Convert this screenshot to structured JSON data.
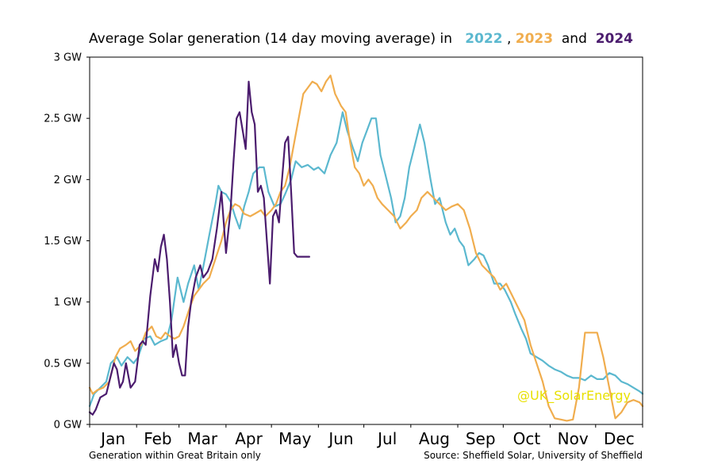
{
  "chart_data": {
    "type": "line",
    "title": {
      "prefix": "Average Solar generation (14 day moving average) in",
      "sep1": ",",
      "sep2": "and",
      "years": [
        "2022",
        "2023",
        "2024"
      ]
    },
    "ylim": [
      0,
      3
    ],
    "y_ticks": [
      0,
      0.5,
      1,
      1.5,
      2,
      2.5,
      3
    ],
    "y_tick_labels": [
      "0 GW",
      "0.5 GW",
      "1 GW",
      "1.5 GW",
      "2 GW",
      "2.5 GW",
      "3 GW"
    ],
    "xlim": [
      1,
      366
    ],
    "month_labels": [
      "Jan",
      "Feb",
      "Mar",
      "Apr",
      "May",
      "Jun",
      "Jul",
      "Aug",
      "Sep",
      "Oct",
      "Nov",
      "Dec"
    ],
    "month_starts": [
      1,
      32,
      60,
      91,
      121,
      152,
      182,
      213,
      244,
      274,
      305,
      335,
      366
    ],
    "grid": false,
    "series": [
      {
        "name": "2022",
        "color": "#5bb8cf",
        "x": [
          1,
          4,
          8,
          12,
          15,
          19,
          22,
          26,
          30,
          33,
          37,
          41,
          44,
          48,
          52,
          55,
          59,
          63,
          66,
          70,
          73,
          77,
          80,
          84,
          86,
          88,
          91,
          94,
          97,
          100,
          103,
          106,
          109,
          113,
          116,
          119,
          123,
          127,
          130,
          134,
          137,
          141,
          145,
          149,
          152,
          156,
          160,
          164,
          168,
          171,
          175,
          178,
          181,
          184,
          187,
          190,
          193,
          196,
          200,
          203,
          206,
          209,
          212,
          215,
          219,
          222,
          226,
          229,
          232,
          236,
          239,
          242,
          245,
          248,
          251,
          255,
          258,
          261,
          264,
          268,
          272,
          275,
          279,
          282,
          286,
          289,
          292,
          296,
          300,
          304,
          308,
          312,
          316,
          320,
          324,
          328,
          332,
          336,
          340,
          344,
          348,
          352,
          356,
          360,
          364,
          366
        ],
        "y": [
          0.15,
          0.25,
          0.3,
          0.35,
          0.5,
          0.55,
          0.48,
          0.55,
          0.5,
          0.55,
          0.7,
          0.72,
          0.65,
          0.68,
          0.7,
          0.85,
          1.2,
          1.0,
          1.15,
          1.3,
          1.1,
          1.35,
          1.55,
          1.8,
          1.95,
          1.9,
          1.88,
          1.82,
          1.7,
          1.6,
          1.78,
          1.9,
          2.05,
          2.1,
          2.1,
          1.9,
          1.78,
          1.8,
          1.88,
          2.0,
          2.15,
          2.1,
          2.12,
          2.08,
          2.1,
          2.05,
          2.2,
          2.3,
          2.55,
          2.4,
          2.25,
          2.15,
          2.3,
          2.4,
          2.5,
          2.5,
          2.2,
          2.05,
          1.85,
          1.65,
          1.7,
          1.85,
          2.1,
          2.25,
          2.45,
          2.3,
          2.0,
          1.8,
          1.85,
          1.65,
          1.55,
          1.6,
          1.5,
          1.45,
          1.3,
          1.35,
          1.4,
          1.38,
          1.3,
          1.15,
          1.15,
          1.1,
          1.0,
          0.9,
          0.78,
          0.7,
          0.58,
          0.55,
          0.52,
          0.48,
          0.45,
          0.43,
          0.4,
          0.38,
          0.38,
          0.36,
          0.4,
          0.37,
          0.37,
          0.42,
          0.4,
          0.35,
          0.33,
          0.3,
          0.27,
          0.25
        ]
      },
      {
        "name": "2023",
        "color": "#f0ad4e",
        "x": [
          1,
          3,
          6,
          10,
          14,
          18,
          21,
          25,
          28,
          31,
          35,
          38,
          42,
          45,
          48,
          51,
          54,
          57,
          60,
          63,
          67,
          70,
          73,
          76,
          80,
          84,
          88,
          91,
          94,
          97,
          100,
          103,
          107,
          110,
          114,
          117,
          121,
          124,
          127,
          130,
          133,
          136,
          139,
          142,
          145,
          148,
          151,
          154,
          157,
          160,
          163,
          167,
          170,
          173,
          176,
          179,
          182,
          185,
          188,
          191,
          194,
          198,
          202,
          206,
          210,
          213,
          217,
          220,
          224,
          228,
          232,
          236,
          240,
          244,
          248,
          252,
          256,
          260,
          264,
          268,
          272,
          276,
          280,
          284,
          288,
          292,
          296,
          300,
          304,
          308,
          312,
          316,
          320,
          324,
          328,
          332,
          336,
          340,
          344,
          348,
          352,
          356,
          360,
          364,
          366
        ],
        "y": [
          0.3,
          0.25,
          0.28,
          0.3,
          0.35,
          0.55,
          0.62,
          0.65,
          0.68,
          0.6,
          0.65,
          0.75,
          0.8,
          0.72,
          0.7,
          0.75,
          0.72,
          0.7,
          0.72,
          0.8,
          0.95,
          1.05,
          1.1,
          1.15,
          1.2,
          1.35,
          1.5,
          1.65,
          1.75,
          1.8,
          1.78,
          1.72,
          1.7,
          1.72,
          1.75,
          1.7,
          1.75,
          1.8,
          1.9,
          1.95,
          2.1,
          2.3,
          2.5,
          2.7,
          2.75,
          2.8,
          2.78,
          2.72,
          2.8,
          2.85,
          2.7,
          2.6,
          2.55,
          2.3,
          2.1,
          2.05,
          1.95,
          2.0,
          1.95,
          1.85,
          1.8,
          1.75,
          1.7,
          1.6,
          1.65,
          1.7,
          1.75,
          1.85,
          1.9,
          1.85,
          1.8,
          1.75,
          1.78,
          1.8,
          1.75,
          1.6,
          1.4,
          1.3,
          1.25,
          1.2,
          1.1,
          1.15,
          1.05,
          0.95,
          0.85,
          0.65,
          0.5,
          0.35,
          0.15,
          0.05,
          0.04,
          0.03,
          0.04,
          0.3,
          0.75,
          0.75,
          0.75,
          0.55,
          0.3,
          0.05,
          0.1,
          0.18,
          0.2,
          0.18,
          0.15
        ]
      },
      {
        "name": "2024",
        "color": "#4b1c6e",
        "x": [
          1,
          3,
          5,
          8,
          12,
          15,
          17,
          19,
          21,
          23,
          25,
          28,
          31,
          34,
          36,
          38,
          41,
          44,
          46,
          48,
          50,
          52,
          54,
          56,
          58,
          60,
          62,
          64,
          66,
          68,
          71,
          74,
          76,
          79,
          82,
          85,
          88,
          91,
          94,
          96,
          98,
          100,
          102,
          104,
          106,
          108,
          110,
          112,
          114,
          116,
          118,
          120,
          122,
          124,
          126,
          128,
          130,
          132,
          134,
          136,
          138,
          140,
          142,
          144,
          146
        ],
        "y": [
          0.1,
          0.08,
          0.12,
          0.22,
          0.25,
          0.4,
          0.5,
          0.45,
          0.3,
          0.35,
          0.5,
          0.3,
          0.35,
          0.65,
          0.68,
          0.65,
          1.05,
          1.35,
          1.25,
          1.45,
          1.55,
          1.35,
          1.0,
          0.55,
          0.65,
          0.5,
          0.4,
          0.4,
          0.8,
          1.0,
          1.2,
          1.3,
          1.2,
          1.25,
          1.35,
          1.6,
          1.9,
          1.4,
          1.75,
          2.15,
          2.5,
          2.55,
          2.4,
          2.25,
          2.8,
          2.55,
          2.45,
          1.9,
          1.95,
          1.85,
          1.5,
          1.15,
          1.7,
          1.75,
          1.65,
          2.0,
          2.3,
          2.35,
          1.9,
          1.4,
          1.37,
          1.37,
          1.37,
          1.37,
          1.37
        ]
      }
    ]
  },
  "footnote_left": "Generation within Great Britain only",
  "footnote_right": "Source: Sheffield Solar, University of Sheffield",
  "watermark": "@UK_SolarEnergy"
}
